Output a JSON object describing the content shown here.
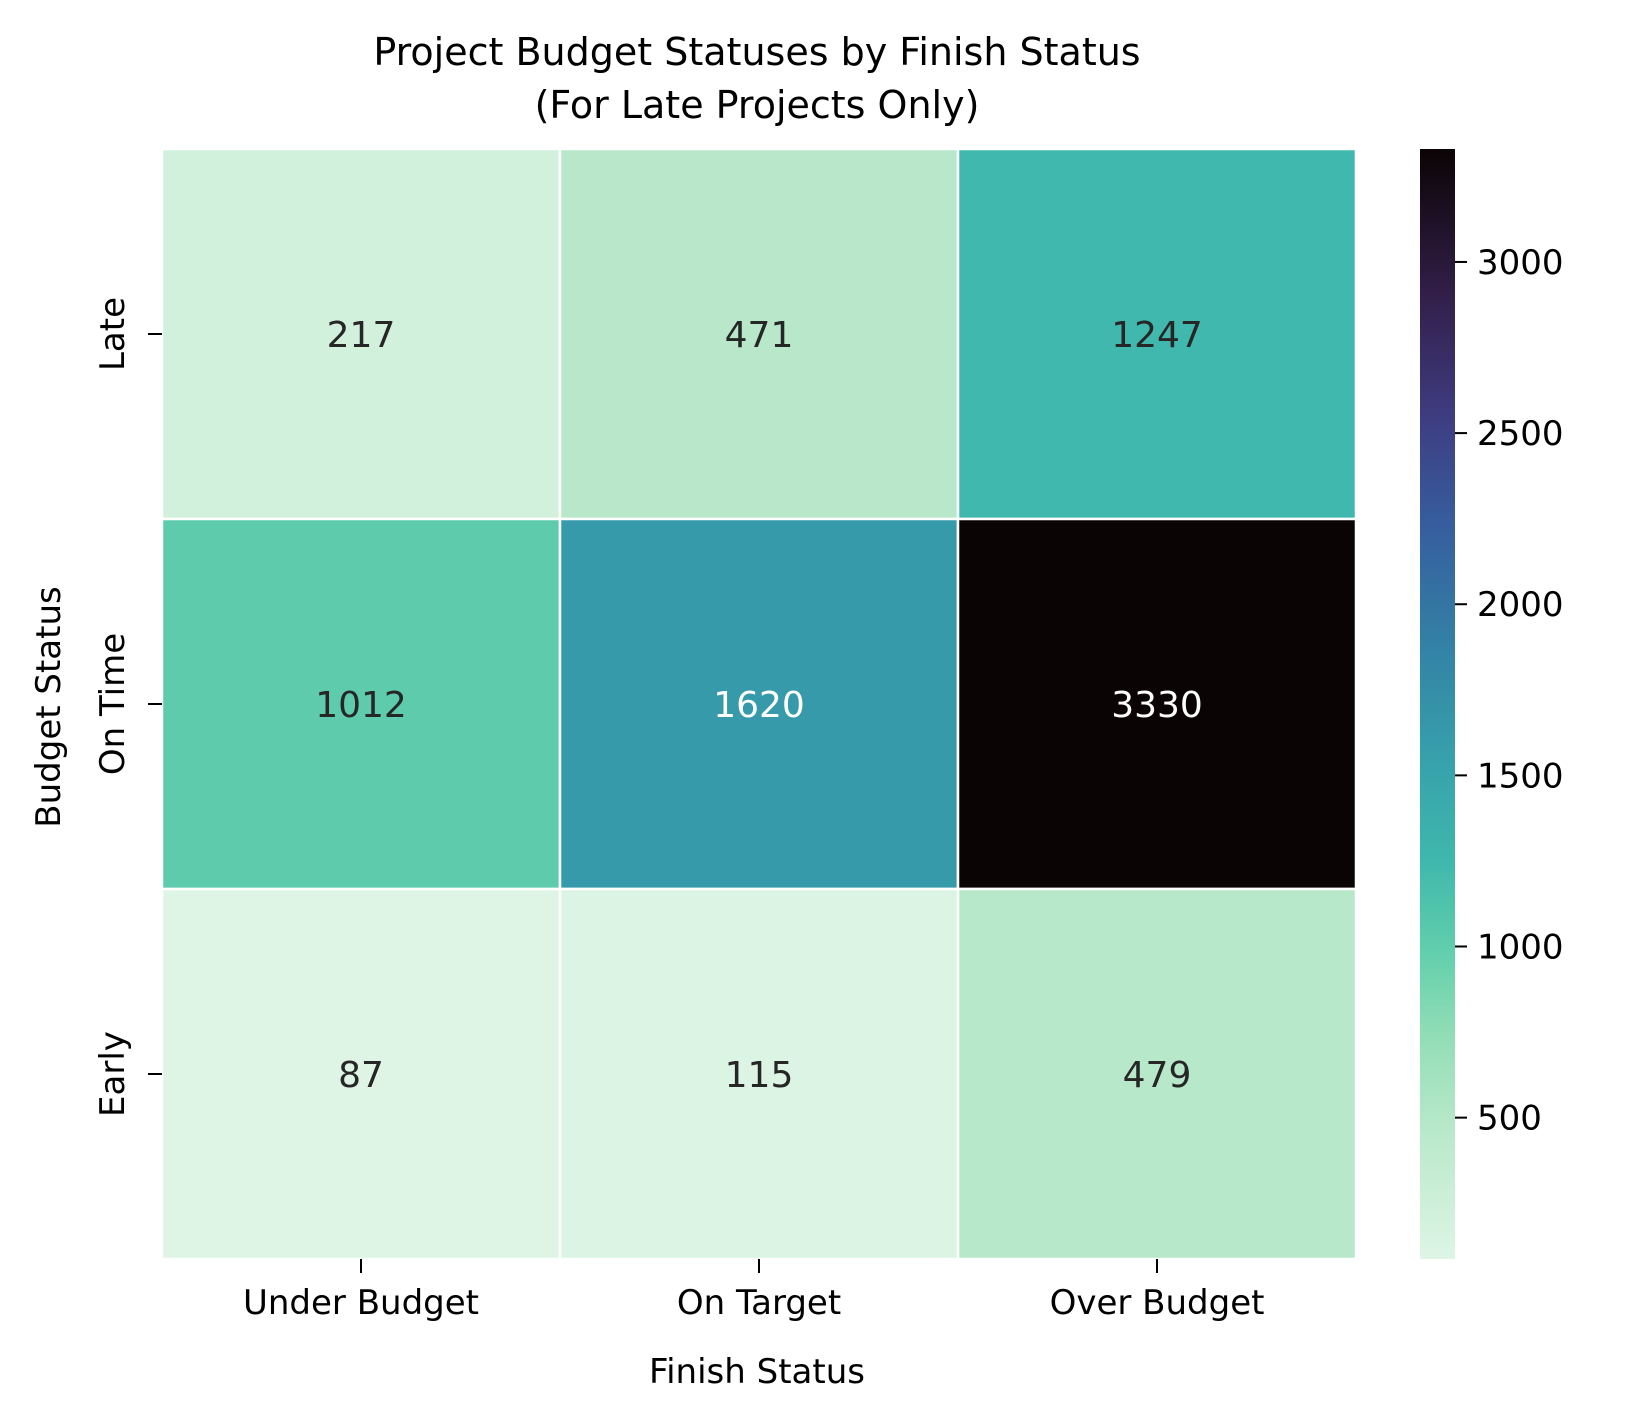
{
  "chart_data": {
    "type": "heatmap",
    "title_lines": [
      "Project Budget Statuses by Finish Status",
      "(For Late Projects Only)"
    ],
    "xlabel": "Finish Status",
    "ylabel": "Budget Status",
    "x_categories": [
      "Under Budget",
      "On Target",
      "Over Budget"
    ],
    "y_categories": [
      "Late",
      "On Time",
      "Early"
    ],
    "values": [
      [
        217,
        471,
        1247
      ],
      [
        1012,
        1620,
        3330
      ],
      [
        87,
        115,
        479
      ]
    ],
    "colorbar": {
      "colormap": "mako_r",
      "vmin": 87,
      "vmax": 3330,
      "ticks": [
        500,
        1000,
        1500,
        2000,
        2500,
        3000
      ]
    },
    "annotate_cells": true,
    "grid": false,
    "legend": "colorbar-right"
  }
}
